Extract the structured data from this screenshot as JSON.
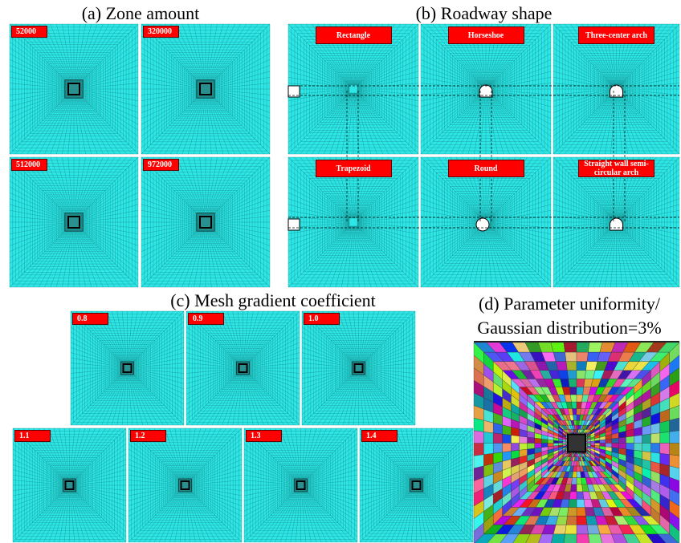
{
  "panel_a": {
    "title": "(a) Zone amount",
    "labels": [
      "52000",
      "320000",
      "512000",
      "972000"
    ]
  },
  "panel_b": {
    "title": "(b) Roadway shape",
    "labels": [
      "Rectangle",
      "Horseshoe",
      "Three-center arch",
      "Trapezoid",
      "Round",
      "Straight wall semi-circular arch"
    ]
  },
  "panel_c": {
    "title": "(c) Mesh gradient coefficient",
    "labels": [
      "0.8",
      "0.9",
      "1.0",
      "1.1",
      "1.2",
      "1.3",
      "1.4"
    ]
  },
  "panel_d": {
    "title": [
      "(d) Parameter uniformity/",
      "Gaussian distribution=3%"
    ]
  }
}
